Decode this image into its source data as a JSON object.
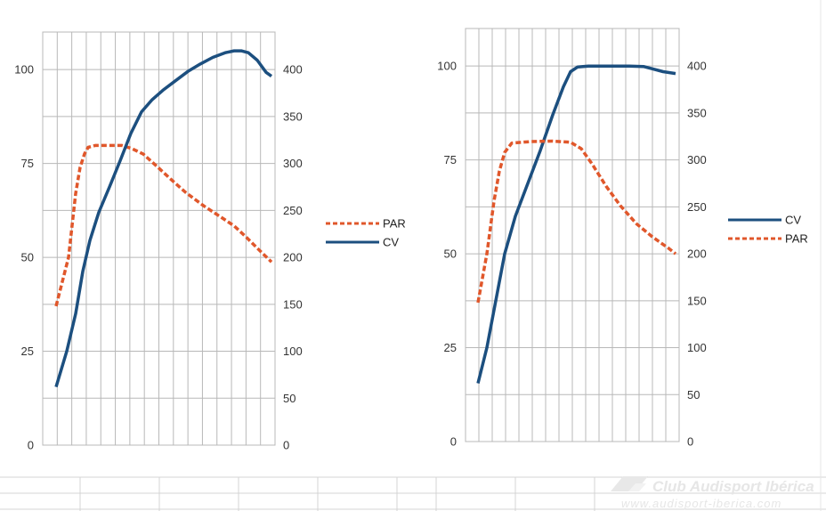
{
  "chart_data": [
    {
      "type": "line",
      "x": [
        0,
        1,
        2,
        3,
        4,
        5,
        6,
        7,
        8,
        9,
        10,
        11,
        12,
        13,
        14,
        15,
        16,
        17,
        18,
        19,
        20,
        21,
        22,
        23,
        24,
        25,
        26,
        27,
        28,
        29,
        30,
        31,
        32,
        33,
        34,
        35,
        36,
        37,
        38,
        39,
        40,
        41,
        42,
        43,
        44,
        45,
        46,
        47,
        48,
        49,
        50,
        51,
        52,
        53,
        54,
        55,
        56,
        57,
        58,
        59,
        60,
        61,
        62,
        63,
        64,
        65,
        66,
        67,
        68,
        69,
        70,
        71,
        72,
        73,
        74,
        75,
        76,
        77,
        78,
        79,
        80,
        81,
        82,
        83,
        84,
        85,
        86,
        87,
        88,
        89,
        90,
        91,
        92,
        93,
        94,
        95,
        96,
        97,
        98,
        99,
        100,
        101,
        102,
        103,
        104,
        105,
        106,
        107,
        108,
        109,
        110,
        111,
        112,
        113,
        114,
        115,
        116,
        117,
        118,
        119,
        120,
        121,
        122,
        123,
        124,
        125,
        126,
        127,
        128,
        129,
        130,
        131,
        132,
        133,
        134,
        135,
        136,
        137,
        138,
        139,
        140,
        141,
        142,
        143,
        144,
        145,
        146,
        147,
        148,
        149,
        150,
        151,
        152,
        153,
        154,
        155,
        156,
        157,
        158,
        159,
        160,
        161,
        162,
        163,
        164,
        165,
        166,
        167,
        168,
        169,
        170,
        171,
        172,
        173,
        174,
        175,
        176,
        177,
        178,
        179,
        180,
        181,
        182,
        183,
        184,
        185,
        186,
        187,
        188,
        189,
        190,
        191,
        192,
        193,
        194,
        195,
        196,
        197,
        198,
        199,
        200,
        201,
        202,
        203,
        204,
        205,
        206,
        207,
        208,
        209,
        210,
        211,
        212,
        213,
        214,
        215,
        216,
        217,
        218,
        219,
        220,
        221,
        222,
        223,
        224,
        225,
        226,
        227,
        228,
        229,
        230,
        231,
        232,
        233,
        234,
        235,
        236,
        237,
        238,
        239,
        240,
        241,
        242
      ],
      "x_note": "",
      "series": [
        {
          "name": "PAR",
          "axis": "left",
          "color": "#e0572b",
          "dashed": true,
          "points": [
            [
              0,
              37
            ],
            [
              14,
              50
            ],
            [
              22,
              67
            ],
            [
              27,
              74
            ],
            [
              32,
              77.6
            ],
            [
              36,
              79.3
            ],
            [
              44,
              79.8
            ],
            [
              60,
              79.8
            ],
            [
              74,
              79.8
            ],
            [
              85,
              79
            ],
            [
              98,
              77.5
            ],
            [
              112,
              74.5
            ],
            [
              128,
              71
            ],
            [
              146,
              67.2
            ],
            [
              166,
              63.7
            ],
            [
              186,
              60.6
            ],
            [
              200,
              58.4
            ],
            [
              214,
              55.3
            ],
            [
              228,
              52
            ],
            [
              242,
              48.8
            ]
          ]
        },
        {
          "name": "CV",
          "axis": "right",
          "color": "#1c4f7f",
          "dashed": false,
          "points": [
            [
              0,
              62
            ],
            [
              12,
              100
            ],
            [
              22,
              140
            ],
            [
              30,
              185
            ],
            [
              38,
              218
            ],
            [
              48,
              248
            ],
            [
              60,
              275
            ],
            [
              72,
              303
            ],
            [
              84,
              332
            ],
            [
              96,
              355
            ],
            [
              108,
              368
            ],
            [
              120,
              378
            ],
            [
              134,
              388
            ],
            [
              148,
              398
            ],
            [
              162,
              406
            ],
            [
              176,
              413
            ],
            [
              190,
              418
            ],
            [
              200,
              420
            ],
            [
              208,
              420
            ],
            [
              216,
              418
            ],
            [
              226,
              410
            ],
            [
              236,
              397
            ],
            [
              242,
              393
            ]
          ]
        }
      ],
      "y_left": {
        "ticks": [
          "0",
          "25",
          "50",
          "75",
          "100"
        ],
        "range": [
          0,
          110
        ]
      },
      "y_right": {
        "ticks": [
          "0",
          "50",
          "100",
          "150",
          "200",
          "250",
          "300",
          "350",
          "400"
        ],
        "range": [
          0,
          440
        ]
      },
      "legend": {
        "placement": "right",
        "entries": [
          "PAR",
          "CV"
        ]
      },
      "grid": true,
      "vertical_gridlines": 16
    },
    {
      "type": "line",
      "series": [
        {
          "name": "CV",
          "axis": "right",
          "color": "#1c4f7f",
          "dashed": false,
          "points": [
            [
              0,
              62
            ],
            [
              10,
              100
            ],
            [
              20,
              150
            ],
            [
              30,
              200
            ],
            [
              42,
              240
            ],
            [
              56,
              275
            ],
            [
              70,
              310
            ],
            [
              84,
              348
            ],
            [
              96,
              378
            ],
            [
              104,
              394
            ],
            [
              112,
              399
            ],
            [
              124,
              400
            ],
            [
              170,
              400
            ],
            [
              186,
              399.5
            ],
            [
              196,
              397
            ],
            [
              208,
              394
            ],
            [
              222,
              392
            ]
          ]
        },
        {
          "name": "PAR",
          "axis": "left",
          "color": "#e0572b",
          "dashed": true,
          "points": [
            [
              0,
              37
            ],
            [
              10,
              50
            ],
            [
              18,
              64
            ],
            [
              24,
              72
            ],
            [
              30,
              77
            ],
            [
              38,
              79.5
            ],
            [
              60,
              79.9
            ],
            [
              84,
              80
            ],
            [
              104,
              79.7
            ],
            [
              116,
              78
            ],
            [
              128,
              74
            ],
            [
              144,
              68
            ],
            [
              160,
              62.8
            ],
            [
              178,
              58
            ],
            [
              196,
              54.5
            ],
            [
              214,
              51.5
            ],
            [
              222,
              50
            ]
          ]
        }
      ],
      "y_left": {
        "ticks": [
          "0",
          "25",
          "50",
          "75",
          "100"
        ],
        "range": [
          0,
          110
        ]
      },
      "y_right": {
        "ticks": [
          "0",
          "50",
          "100",
          "150",
          "200",
          "250",
          "300",
          "350",
          "400"
        ],
        "range": [
          0,
          440
        ]
      },
      "legend": {
        "placement": "right",
        "entries": [
          "CV",
          "PAR"
        ]
      },
      "grid": true,
      "vertical_gridlines": 16
    }
  ],
  "watermark": {
    "title": "Club Audisport Ibérica",
    "url": "www.audisport-iberica.com"
  },
  "colors": {
    "grid": "#b8b8b8",
    "axis_text": "#333333",
    "par": "#e0572b",
    "cv": "#1c4f7f"
  }
}
